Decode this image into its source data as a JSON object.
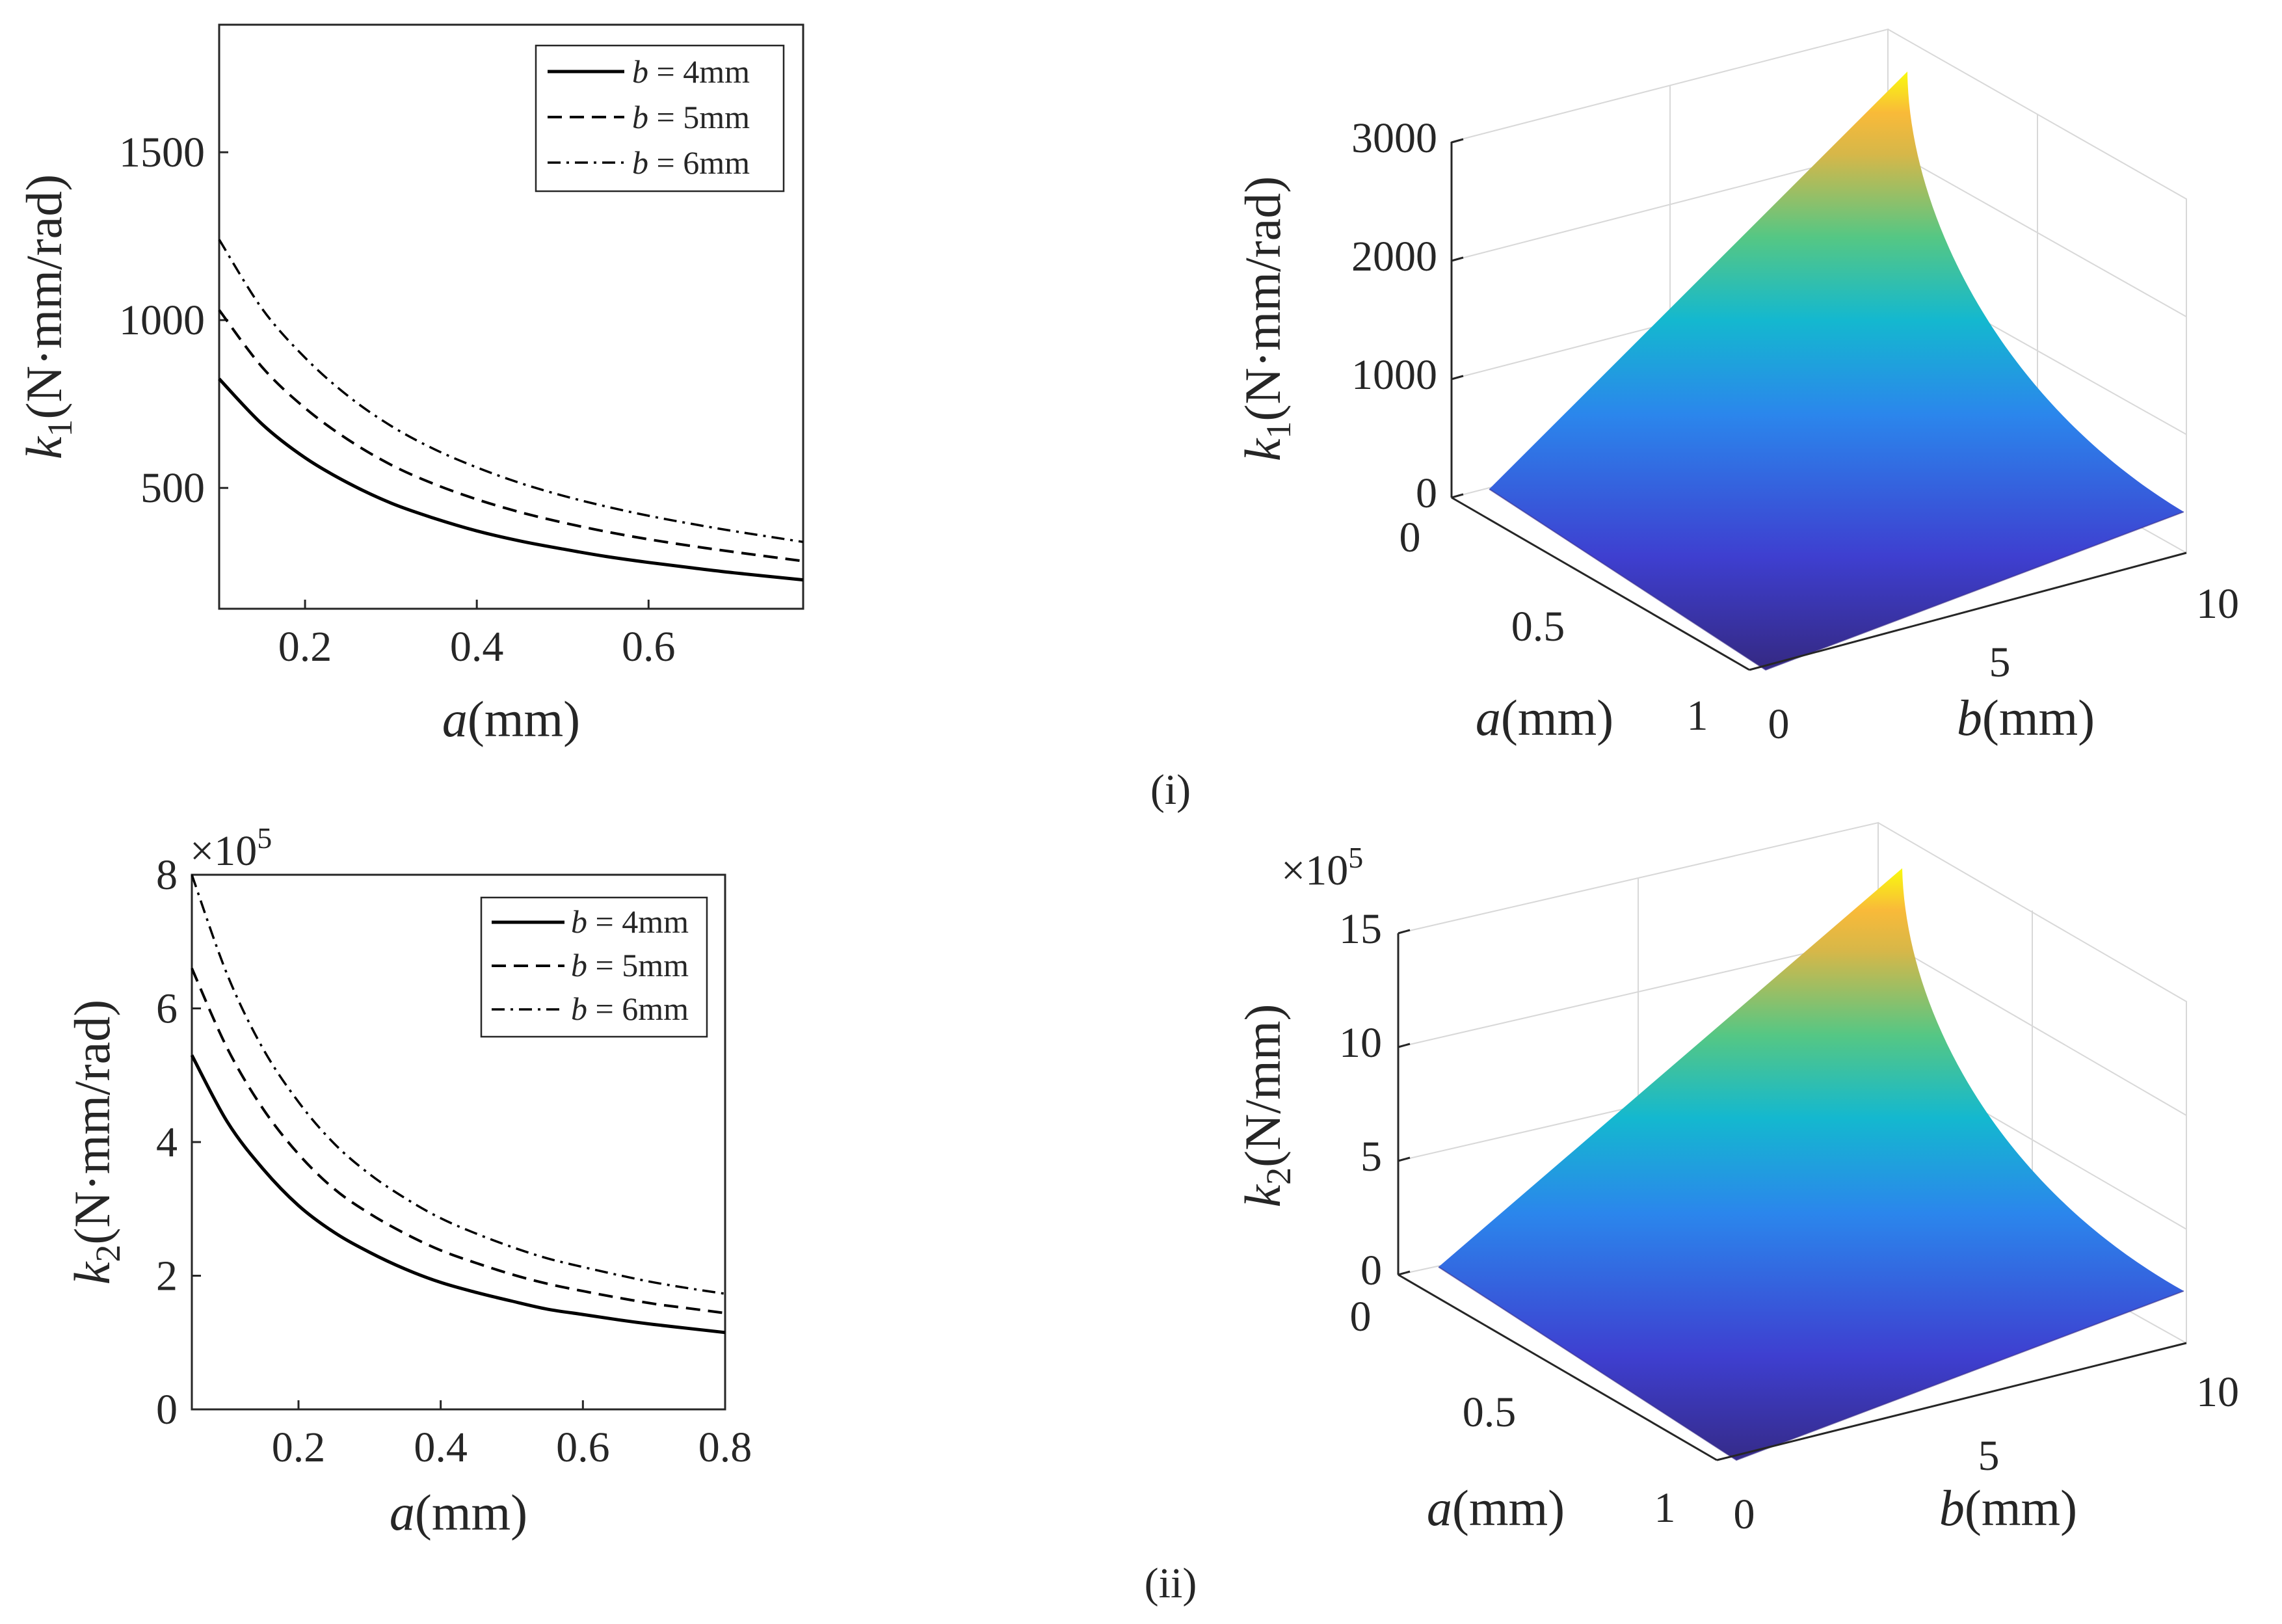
{
  "panel_labels": {
    "first": "(i)",
    "second": "(ii)"
  },
  "colors": {
    "axis": "#262626",
    "curve": "#000000",
    "grid": "#d8d8d8"
  },
  "chart_data": [
    {
      "id": "k1_2d",
      "type": "line",
      "xlim": [
        0.1,
        0.78
      ],
      "ylim": [
        140,
        1880
      ],
      "xlabel_italic": "a",
      "xlabel_rest": "(mm)",
      "ylabel_italic": "k",
      "ylabel_sub": "1",
      "ylabel_rest": "(N·mm/rad)",
      "x_ticks": [
        0.2,
        0.4,
        0.6
      ],
      "x_tick_labels": [
        "0.2",
        "0.4",
        "0.6"
      ],
      "y_ticks": [
        500,
        1000,
        1500
      ],
      "y_tick_labels": [
        "500",
        "1000",
        "1500"
      ],
      "legend": {
        "position": "top-right",
        "entries": [
          {
            "italic": "b",
            "rest": " = 4mm",
            "style": "solid"
          },
          {
            "italic": "b",
            "rest": " = 5mm",
            "style": "dashed"
          },
          {
            "italic": "b",
            "rest": " = 6mm",
            "style": "dashdot"
          }
        ]
      },
      "x": [
        0.1,
        0.15,
        0.2,
        0.25,
        0.3,
        0.35,
        0.4,
        0.45,
        0.5,
        0.55,
        0.6,
        0.65,
        0.7,
        0.78
      ],
      "series": [
        {
          "name": "b = 4mm",
          "style": "solid",
          "values": [
            825,
            690,
            590,
            515,
            455,
            410,
            372,
            342,
            318,
            296,
            278,
            262,
            247,
            226
          ]
        },
        {
          "name": "b = 5mm",
          "style": "dashed",
          "values": [
            1030,
            860,
            738,
            644,
            569,
            512,
            466,
            428,
            397,
            370,
            347,
            327,
            309,
            282
          ]
        },
        {
          "name": "b = 6mm",
          "style": "dashdot",
          "values": [
            1240,
            1034,
            888,
            774,
            685,
            616,
            561,
            515,
            477,
            445,
            417,
            393,
            371,
            339
          ]
        }
      ]
    },
    {
      "id": "k2_2d",
      "type": "line",
      "xlim": [
        0.05,
        0.8
      ],
      "ylim": [
        0,
        8
      ],
      "exponent_label": "×10",
      "exponent_power": "5",
      "xlabel_italic": "a",
      "xlabel_rest": "(mm)",
      "ylabel_italic": "k",
      "ylabel_sub": "2",
      "ylabel_rest": "(N·mm/rad)",
      "x_ticks": [
        0.2,
        0.4,
        0.6,
        0.8
      ],
      "x_tick_labels": [
        "0.2",
        "0.4",
        "0.6",
        "0.8"
      ],
      "y_ticks": [
        0,
        2,
        4,
        6,
        8
      ],
      "y_tick_labels": [
        "0",
        "2",
        "4",
        "6",
        "8"
      ],
      "legend": {
        "position": "top-right",
        "entries": [
          {
            "italic": "b",
            "rest": " = 4mm",
            "style": "solid"
          },
          {
            "italic": "b",
            "rest": " = 5mm",
            "style": "dashed"
          },
          {
            "italic": "b",
            "rest": " = 6mm",
            "style": "dashdot"
          }
        ]
      },
      "x": [
        0.05,
        0.1,
        0.15,
        0.2,
        0.25,
        0.3,
        0.35,
        0.4,
        0.45,
        0.5,
        0.55,
        0.6,
        0.65,
        0.7,
        0.75,
        0.8
      ],
      "series": [
        {
          "name": "b = 4mm",
          "style": "solid",
          "values": [
            5.3,
            4.3,
            3.6,
            3.05,
            2.65,
            2.35,
            2.1,
            1.9,
            1.75,
            1.62,
            1.5,
            1.42,
            1.34,
            1.27,
            1.21,
            1.15
          ]
        },
        {
          "name": "b = 5mm",
          "style": "dashed",
          "values": [
            6.6,
            5.4,
            4.5,
            3.82,
            3.3,
            2.93,
            2.63,
            2.38,
            2.19,
            2.02,
            1.88,
            1.77,
            1.67,
            1.58,
            1.51,
            1.44
          ]
        },
        {
          "name": "b = 6mm",
          "style": "dashdot",
          "values": [
            8.0,
            6.5,
            5.4,
            4.6,
            3.98,
            3.52,
            3.16,
            2.86,
            2.63,
            2.43,
            2.26,
            2.13,
            2.01,
            1.9,
            1.81,
            1.73
          ]
        }
      ]
    },
    {
      "id": "k1_3d",
      "type": "surface",
      "zlim": [
        0,
        3000
      ],
      "z_max": 3650,
      "z_ticks": [
        0,
        1000,
        2000,
        3000
      ],
      "z_tick_labels": [
        "0",
        "1000",
        "2000",
        "3000"
      ],
      "a_ticks": [
        0,
        0.5,
        1
      ],
      "a_tick_labels": [
        "0",
        "0.5",
        "1"
      ],
      "b_ticks": [
        0,
        5,
        10
      ],
      "b_tick_labels": [
        "0",
        "5",
        "10"
      ],
      "alabel_italic": "a",
      "alabel_rest": "(mm)",
      "blabel_italic": "b",
      "blabel_rest": "(mm)",
      "zlabel_italic": "k",
      "zlabel_sub": "1",
      "zlabel_rest": "(N·mm/rad)",
      "colormap": "parula"
    },
    {
      "id": "k2_3d",
      "type": "surface",
      "zlim": [
        0,
        15
      ],
      "z_max": 16.8,
      "exponent_label": "×10",
      "exponent_power": "5",
      "z_ticks": [
        0,
        5,
        10,
        15
      ],
      "z_tick_labels": [
        "0",
        "5",
        "10",
        "15"
      ],
      "a_ticks": [
        0,
        0.5,
        1
      ],
      "a_tick_labels": [
        "0",
        "0.5",
        "1"
      ],
      "b_ticks": [
        0,
        5,
        10
      ],
      "b_tick_labels": [
        "0",
        "5",
        "10"
      ],
      "alabel_italic": "a",
      "alabel_rest": "(mm)",
      "blabel_italic": "b",
      "blabel_rest": "(mm)",
      "zlabel_italic": "k",
      "zlabel_sub": "2",
      "zlabel_rest": "(N/mm)",
      "colormap": "parula"
    }
  ]
}
